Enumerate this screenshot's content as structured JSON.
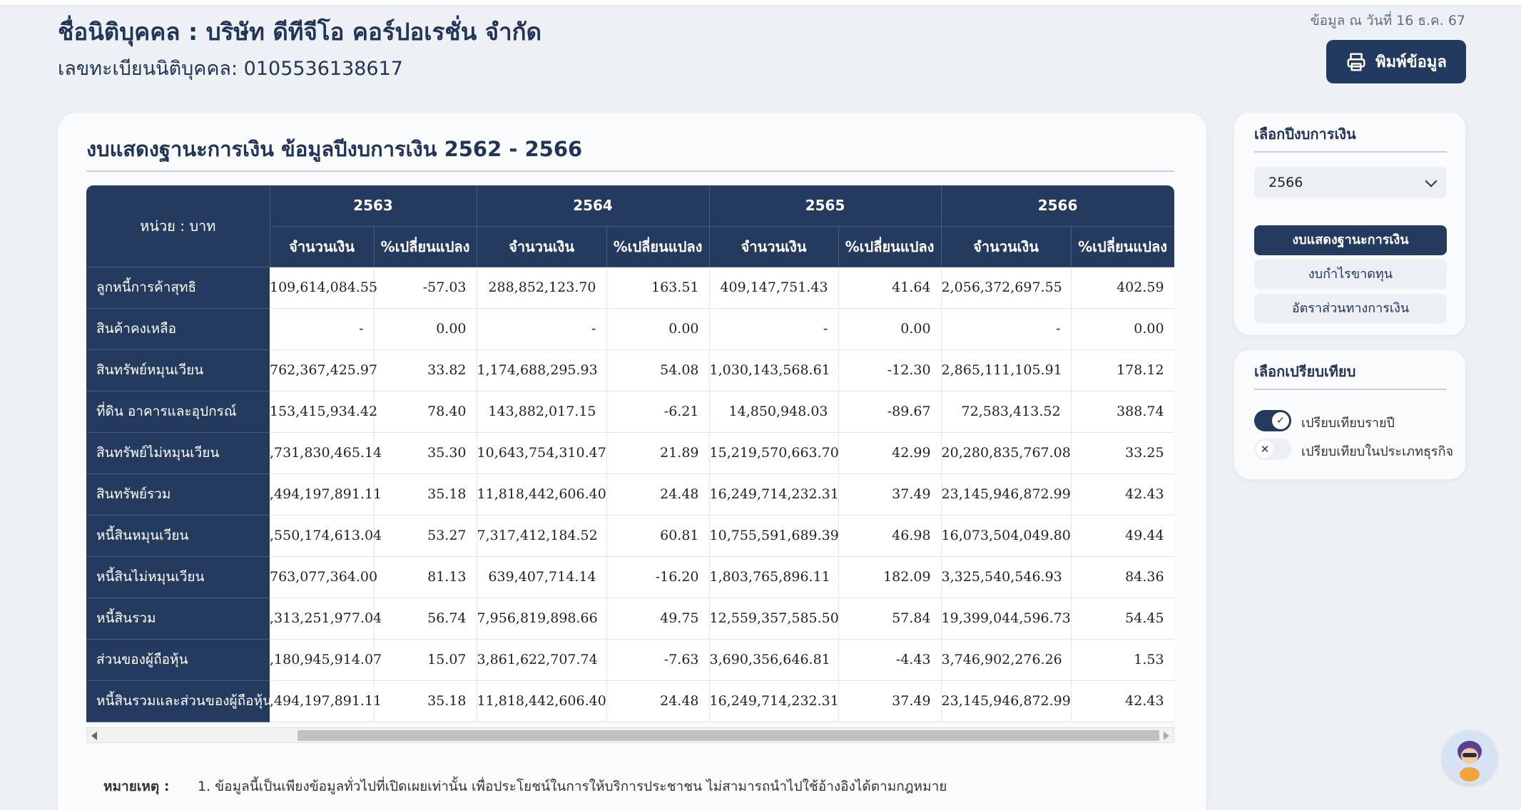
{
  "header": {
    "company_name": "ชื่อนิติบุคคล : บริษัท ดีทีจีโอ คอร์ปอเรชั่น จำกัด",
    "registration": "เลขทะเบียนนิติบุคคล: 0105536138617",
    "data_date": "ข้อมูล ณ วันที่ 16 ธ.ค. 67",
    "print_label": "พิมพ์ข้อมูล",
    "print_icon": "printer-icon"
  },
  "main": {
    "title": "งบแสดงฐานะการเงิน ข้อมูลปีงบการเงิน 2562 - 2566",
    "unit_label": "หน่วย : บาท",
    "years": [
      "2563",
      "2564",
      "2565",
      "2566"
    ],
    "sub_amount": "จำนวนเงิน",
    "sub_change": "%เปลี่ยนแปลง",
    "rows": [
      {
        "label": "ลูกหนี้การค้าสุทธิ",
        "c": [
          "109,614,084.55",
          "-57.03",
          "288,852,123.70",
          "163.51",
          "409,147,751.43",
          "41.64",
          "2,056,372,697.55",
          "402.59"
        ]
      },
      {
        "label": "สินค้าคงเหลือ",
        "c": [
          "-",
          "0.00",
          "-",
          "0.00",
          "-",
          "0.00",
          "-",
          "0.00"
        ]
      },
      {
        "label": "สินทรัพย์หมุนเวียน",
        "c": [
          "762,367,425.97",
          "33.82",
          "1,174,688,295.93",
          "54.08",
          "1,030,143,568.61",
          "-12.30",
          "2,865,111,105.91",
          "178.12"
        ]
      },
      {
        "label": "ที่ดิน อาคารและอุปกรณ์",
        "c": [
          "153,415,934.42",
          "78.40",
          "143,882,017.15",
          "-6.21",
          "14,850,948.03",
          "-89.67",
          "72,583,413.52",
          "388.74"
        ]
      },
      {
        "label": "สินทรัพย์ไม่หมุนเวียน",
        "c": [
          ",731,830,465.14",
          "35.30",
          "10,643,754,310.47",
          "21.89",
          "15,219,570,663.70",
          "42.99",
          "20,280,835,767.08",
          "33.25"
        ]
      },
      {
        "label": "สินทรัพย์รวม",
        "c": [
          ",494,197,891.11",
          "35.18",
          "11,818,442,606.40",
          "24.48",
          "16,249,714,232.31",
          "37.49",
          "23,145,946,872.99",
          "42.43"
        ]
      },
      {
        "label": "หนี้สินหมุนเวียน",
        "c": [
          ",550,174,613.04",
          "53.27",
          "7,317,412,184.52",
          "60.81",
          "10,755,591,689.39",
          "46.98",
          "16,073,504,049.80",
          "49.44"
        ]
      },
      {
        "label": "หนี้สินไม่หมุนเวียน",
        "c": [
          "763,077,364.00",
          "81.13",
          "639,407,714.14",
          "-16.20",
          "1,803,765,896.11",
          "182.09",
          "3,325,540,546.93",
          "84.36"
        ]
      },
      {
        "label": "หนี้สินรวม",
        "c": [
          ",313,251,977.04",
          "56.74",
          "7,956,819,898.66",
          "49.75",
          "12,559,357,585.50",
          "57.84",
          "19,399,044,596.73",
          "54.45"
        ]
      },
      {
        "label": "ส่วนของผู้ถือหุ้น",
        "c": [
          ",180,945,914.07",
          "15.07",
          "3,861,622,707.74",
          "-7.63",
          "3,690,356,646.81",
          "-4.43",
          "3,746,902,276.26",
          "1.53"
        ]
      },
      {
        "label": "หนี้สินรวมและส่วนของผู้ถือหุ้น",
        "c": [
          ",494,197,891.11",
          "35.18",
          "11,818,442,606.40",
          "24.48",
          "16,249,714,232.31",
          "37.49",
          "23,145,946,872.99",
          "42.43"
        ]
      }
    ],
    "note_label": "หมายเหตุ :",
    "note_1": "1. ข้อมูลนี้เป็นเพียงข้อมูลทั่วไปที่เปิดเผยเท่านั้น เพื่อประโยชน์ในการให้บริการประชาชน ไม่สามารถนำไปใช้อ้างอิงได้ตามกฎหมาย"
  },
  "sidebar": {
    "year_title": "เลือกปีงบการเงิน",
    "year_selected": "2566",
    "buttons": [
      "งบแสดงฐานะการเงิน",
      "งบกำไรขาดทุน",
      "อัตราส่วนทางการเงิน"
    ],
    "compare_title": "เลือกเปรียบเทียบ",
    "compare_yearly": "เปรียบเทียบรายปี",
    "compare_business": "เปรียบเทียบในประเภทธุรกิจ",
    "check_icon": "check-icon",
    "x_icon": "close-icon"
  },
  "colors": {
    "navy": "#243a5e",
    "background": "#edf1f5"
  }
}
